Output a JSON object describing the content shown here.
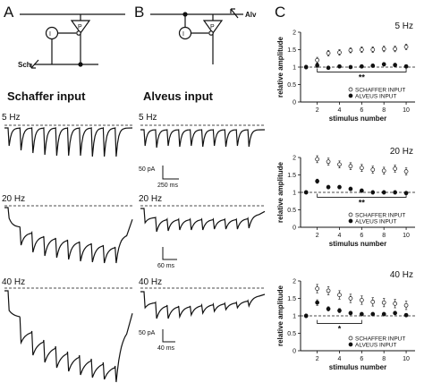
{
  "panels": {
    "a": {
      "letter": "A",
      "title": "Schaffer input",
      "input_label": "Sch",
      "pyramidal_label": "P",
      "interneuron_label": "I",
      "traces": [
        {
          "label": "5 Hz",
          "pulses": 10
        },
        {
          "label": "20 Hz",
          "pulses": 10
        },
        {
          "label": "40 Hz",
          "pulses": 10
        }
      ]
    },
    "b": {
      "letter": "B",
      "title": "Alveus input",
      "input_label": "Alv",
      "pyramidal_label": "P",
      "interneuron_label": "I",
      "traces": [
        {
          "label": "5 Hz",
          "pulses": 10,
          "scale_amp": "50 pA",
          "scale_time": "250 ms"
        },
        {
          "label": "20 Hz",
          "pulses": 10,
          "scale_amp": "",
          "scale_time": "60 ms"
        },
        {
          "label": "40 Hz",
          "pulses": 10,
          "scale_amp": "50 pA",
          "scale_time": "40 ms"
        }
      ]
    },
    "c": {
      "letter": "C"
    }
  },
  "colors": {
    "trace": "#111111",
    "open_marker": "#ffffff",
    "filled_marker": "#111111"
  },
  "chart_data": [
    {
      "type": "scatter",
      "title": "5 Hz",
      "xlabel": "stimulus number",
      "ylabel": "relative amplitude",
      "xlim": [
        0.5,
        10.8
      ],
      "ylim": [
        0,
        2
      ],
      "xticks": [
        2,
        4,
        6,
        8,
        10
      ],
      "yticks": [
        0,
        0.5,
        1,
        1.5,
        2
      ],
      "reference_line": 1,
      "significance": "**",
      "sig_bracket": [
        2,
        10
      ],
      "sig_level": 0.86,
      "legend_placement": "bottom-right",
      "x": [
        1,
        2,
        3,
        4,
        5,
        6,
        7,
        8,
        9,
        10
      ],
      "series": [
        {
          "name": "SCHAFFER INPUT",
          "marker": "open",
          "values": [
            1.0,
            1.2,
            1.4,
            1.42,
            1.48,
            1.5,
            1.5,
            1.52,
            1.52,
            1.58
          ],
          "errors": [
            0.05,
            0.08,
            0.08,
            0.08,
            0.07,
            0.08,
            0.08,
            0.08,
            0.08,
            0.08
          ]
        },
        {
          "name": "ALVEUS INPUT",
          "marker": "filled",
          "values": [
            1.0,
            1.05,
            0.98,
            1.02,
            1.0,
            1.02,
            1.04,
            1.08,
            1.06,
            1.02
          ],
          "errors": [
            0.03,
            0.06,
            0.04,
            0.04,
            0.04,
            0.05,
            0.05,
            0.05,
            0.05,
            0.05
          ]
        }
      ]
    },
    {
      "type": "scatter",
      "title": "20 Hz",
      "xlabel": "stimulus number",
      "ylabel": "relative amplitude",
      "xlim": [
        0.5,
        10.8
      ],
      "ylim": [
        0,
        2
      ],
      "xticks": [
        2,
        4,
        6,
        8,
        10
      ],
      "yticks": [
        0,
        0.5,
        1,
        1.5,
        2
      ],
      "reference_line": 1,
      "significance": "**",
      "sig_bracket": [
        2,
        10
      ],
      "sig_level": 0.86,
      "legend_placement": "bottom-right",
      "x": [
        1,
        2,
        3,
        4,
        5,
        6,
        7,
        8,
        9,
        10
      ],
      "series": [
        {
          "name": "SCHAFFER INPUT",
          "marker": "open",
          "values": [
            1.0,
            1.95,
            1.88,
            1.8,
            1.75,
            1.7,
            1.65,
            1.62,
            1.68,
            1.6
          ],
          "errors": [
            0.04,
            0.1,
            0.1,
            0.1,
            0.1,
            0.1,
            0.1,
            0.1,
            0.1,
            0.1
          ]
        },
        {
          "name": "ALVEUS INPUT",
          "marker": "filled",
          "values": [
            1.0,
            1.32,
            1.15,
            1.15,
            1.1,
            1.05,
            1.0,
            1.0,
            1.0,
            0.98
          ],
          "errors": [
            0.03,
            0.06,
            0.05,
            0.05,
            0.05,
            0.05,
            0.05,
            0.05,
            0.05,
            0.05
          ]
        }
      ]
    },
    {
      "type": "scatter",
      "title": "40 Hz",
      "xlabel": "stimulus number",
      "ylabel": "relative amplitude",
      "xlim": [
        0.5,
        10.8
      ],
      "ylim": [
        0,
        2
      ],
      "xticks": [
        2,
        4,
        6,
        8,
        10
      ],
      "yticks": [
        0,
        0.5,
        1,
        1.5,
        2
      ],
      "reference_line": 1,
      "significance": "*",
      "sig_bracket": [
        2,
        6
      ],
      "sig_level": 0.78,
      "legend_placement": "bottom-right",
      "x": [
        1,
        2,
        3,
        4,
        5,
        6,
        7,
        8,
        9,
        10
      ],
      "series": [
        {
          "name": "SCHAFFER INPUT",
          "marker": "open",
          "values": [
            1.0,
            1.78,
            1.72,
            1.6,
            1.5,
            1.45,
            1.4,
            1.38,
            1.35,
            1.3
          ],
          "errors": [
            0.05,
            0.12,
            0.12,
            0.12,
            0.12,
            0.12,
            0.12,
            0.12,
            0.12,
            0.12
          ]
        },
        {
          "name": "ALVEUS INPUT",
          "marker": "filled",
          "values": [
            1.0,
            1.38,
            1.2,
            1.15,
            1.08,
            1.05,
            1.05,
            1.05,
            1.08,
            1.02
          ],
          "errors": [
            0.03,
            0.08,
            0.06,
            0.06,
            0.05,
            0.05,
            0.05,
            0.05,
            0.05,
            0.05
          ]
        }
      ]
    }
  ]
}
